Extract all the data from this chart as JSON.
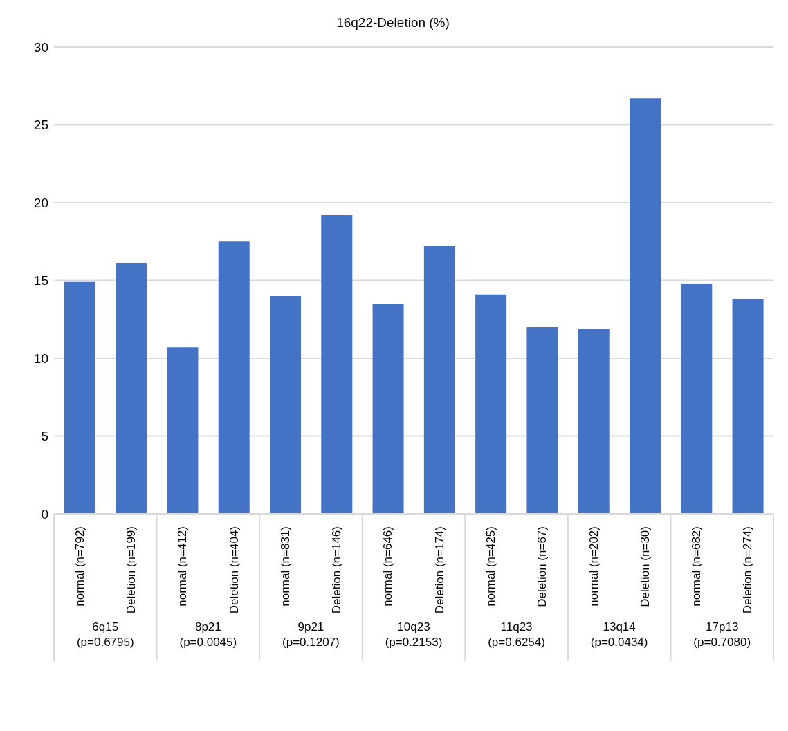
{
  "chart_data": {
    "type": "bar",
    "title": "16q22-Deletion (%)",
    "categories": [
      "normal (n=792)",
      "Deletion (n=199)",
      "normal (n=412)",
      "Deletion (n=404)",
      "normal (n=831)",
      "Deletion (n=146)",
      "normal (n=646)",
      "Deletion (n=174)",
      "normal (n=425)",
      "Deletion (n=67)",
      "normal (n=202)",
      "Deletion (n=30)",
      "normal (n=682)",
      "Deletion (n=274)"
    ],
    "values": [
      14.9,
      16.1,
      10.7,
      17.5,
      14.0,
      19.2,
      13.5,
      17.2,
      14.1,
      12.0,
      11.9,
      26.7,
      14.8,
      13.8
    ],
    "color": "#4472c4",
    "ylim": [
      0,
      30
    ],
    "yticks": [
      0,
      5,
      10,
      15,
      20,
      25,
      30
    ],
    "grid": "y",
    "annotations": [
      "6q15 (p=0.6795)",
      "8p21 (p=0.0045)",
      "9p21 (p=0.1207)",
      "10q23 (p=0.2153)",
      "11q23 (p=0.6254)",
      "13q14 (p=0.0434)",
      "17p13 (p=0.7080)"
    ]
  }
}
